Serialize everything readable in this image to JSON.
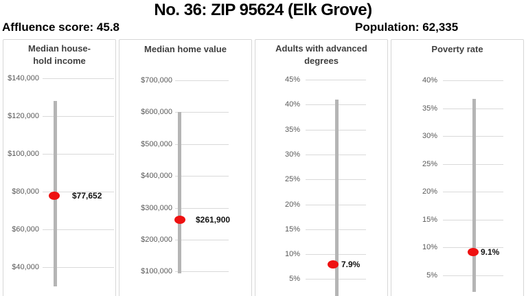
{
  "header": {
    "title": "No. 36: ZIP 95624 (Elk Grove)",
    "affluence_label": "Affluence score: 45.8",
    "population_label": "Population: 62,335"
  },
  "colors": {
    "marker_red": "#ee1111",
    "range_bar_gray": "#b5b5b5",
    "gridline_gray": "#d9d9d9",
    "tick_text_gray": "#595959",
    "panel_title_gray": "#404040"
  },
  "chart_data": [
    {
      "type": "scatter",
      "id": "median-household-income",
      "title": "Median household income",
      "title_lines": [
        "Median house-",
        "hold income"
      ],
      "ticks": {
        "labels": [
          "$140,000",
          "$120,000",
          "$100,000",
          "$80,000",
          "$60,000",
          "$40,000"
        ],
        "values": [
          140000,
          120000,
          100000,
          80000,
          60000,
          40000
        ]
      },
      "ylim": [
        30000,
        150000
      ],
      "range": [
        30000,
        128000
      ],
      "marker": {
        "value": 77652,
        "label": "$77,652"
      },
      "grid": true,
      "legend": "none"
    },
    {
      "type": "scatter",
      "id": "median-home-value",
      "title": "Median home value",
      "title_lines": [
        "Median home value"
      ],
      "ticks": {
        "labels": [
          "$700,000",
          "$600,000",
          "$500,000",
          "$400,000",
          "$300,000",
          "$200,000",
          "$100,000"
        ],
        "values": [
          700000,
          600000,
          500000,
          400000,
          300000,
          200000,
          100000
        ]
      },
      "ylim": [
        90000,
        750000
      ],
      "range": [
        95000,
        600000
      ],
      "marker": {
        "value": 261900,
        "label": "$261,900"
      },
      "grid": true,
      "legend": "none"
    },
    {
      "type": "scatter",
      "id": "adults-with-advanced-degrees",
      "title": "Adults with advanced degrees",
      "title_lines": [
        "Adults with advanced",
        "degrees"
      ],
      "ticks": {
        "labels": [
          "45%",
          "40%",
          "35%",
          "30%",
          "25%",
          "20%",
          "15%",
          "10%",
          "5%"
        ],
        "values": [
          45,
          40,
          35,
          30,
          25,
          20,
          15,
          10,
          5
        ]
      },
      "ylim": [
        0,
        47
      ],
      "range": [
        0.5,
        41
      ],
      "marker": {
        "value": 7.9,
        "label": "7.9%"
      },
      "grid": true,
      "legend": "none"
    },
    {
      "type": "scatter",
      "id": "poverty-rate",
      "title": "Poverty rate",
      "title_lines": [
        "Poverty rate"
      ],
      "ticks": {
        "labels": [
          "40%",
          "35%",
          "30%",
          "25%",
          "20%",
          "15%",
          "10%",
          "5%"
        ],
        "values": [
          40,
          35,
          30,
          25,
          20,
          15,
          10,
          5
        ]
      },
      "ylim": [
        2,
        42
      ],
      "range": [
        2.0,
        36.7
      ],
      "marker": {
        "value": 9.1,
        "label": "9.1%"
      },
      "grid": true,
      "legend": "none"
    }
  ]
}
